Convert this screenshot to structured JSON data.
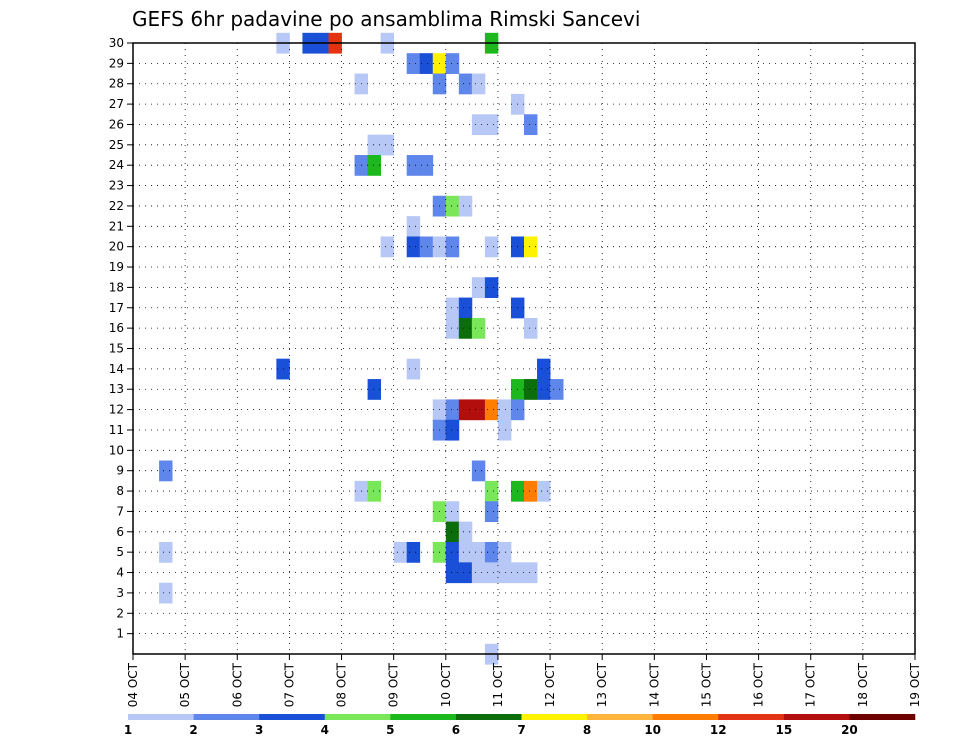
{
  "chart_data": {
    "type": "heatmap",
    "title": "GEFS 6hr padavine po ansamblima Rimski Sancevi",
    "x_tick_labels": [
      "04 OCT",
      "05 OCT",
      "06 OCT",
      "07 OCT",
      "08 OCT",
      "09 OCT",
      "10 OCT",
      "11 OCT",
      "12 OCT",
      "13 OCT",
      "14 OCT",
      "15 OCT",
      "16 OCT",
      "17 OCT",
      "18 OCT",
      "19 OCT"
    ],
    "y_tick_labels": [
      "1",
      "2",
      "3",
      "4",
      "5",
      "6",
      "7",
      "8",
      "9",
      "10",
      "11",
      "12",
      "13",
      "14",
      "15",
      "16",
      "17",
      "18",
      "19",
      "20",
      "21",
      "22",
      "23",
      "24",
      "25",
      "26",
      "27",
      "28",
      "29",
      "30"
    ],
    "x_range_days": [
      0,
      15
    ],
    "y_range": [
      0,
      30
    ],
    "step_hours": 6,
    "grid": "dotted",
    "colorbar": {
      "labels": [
        "1",
        "2",
        "3",
        "4",
        "5",
        "6",
        "7",
        "8",
        "10",
        "12",
        "15",
        "20"
      ],
      "colors": [
        "#b7c8f7",
        "#5f86ea",
        "#1a4fd8",
        "#7ae65a",
        "#1cb81e",
        "#0b6e0b",
        "#fff200",
        "#ffb43c",
        "#ff7d00",
        "#e23414",
        "#b30e0e",
        "#6e0000"
      ]
    },
    "cells": [
      [
        11,
        30,
        0
      ],
      [
        13,
        30,
        2
      ],
      [
        14,
        30,
        2
      ],
      [
        15,
        30,
        9
      ],
      [
        19,
        30,
        0
      ],
      [
        27,
        30,
        4
      ],
      [
        21,
        29,
        1
      ],
      [
        22,
        29,
        2
      ],
      [
        23,
        29,
        6
      ],
      [
        24,
        29,
        1
      ],
      [
        17,
        28,
        0
      ],
      [
        23,
        28,
        1
      ],
      [
        25,
        28,
        1
      ],
      [
        26,
        28,
        0
      ],
      [
        29,
        27,
        0
      ],
      [
        26,
        26,
        0
      ],
      [
        27,
        26,
        0
      ],
      [
        30,
        26,
        1
      ],
      [
        18,
        25,
        0
      ],
      [
        19,
        25,
        0
      ],
      [
        17,
        24,
        1
      ],
      [
        18,
        24,
        4
      ],
      [
        21,
        24,
        1
      ],
      [
        22,
        24,
        1
      ],
      [
        23,
        22,
        1
      ],
      [
        24,
        22,
        3
      ],
      [
        25,
        22,
        0
      ],
      [
        21,
        21,
        0
      ],
      [
        19,
        20,
        0
      ],
      [
        21,
        20,
        2
      ],
      [
        22,
        20,
        1
      ],
      [
        23,
        20,
        0
      ],
      [
        24,
        20,
        1
      ],
      [
        27,
        20,
        0
      ],
      [
        29,
        20,
        2
      ],
      [
        30,
        20,
        6
      ],
      [
        26,
        18,
        0
      ],
      [
        27,
        18,
        2
      ],
      [
        24,
        17,
        0
      ],
      [
        25,
        17,
        2
      ],
      [
        29,
        17,
        2
      ],
      [
        24,
        16,
        0
      ],
      [
        25,
        16,
        5
      ],
      [
        26,
        16,
        3
      ],
      [
        30,
        16,
        0
      ],
      [
        11,
        14,
        2
      ],
      [
        21,
        14,
        0
      ],
      [
        31,
        14,
        2
      ],
      [
        18,
        13,
        2
      ],
      [
        29,
        13,
        4
      ],
      [
        30,
        13,
        5
      ],
      [
        31,
        13,
        2
      ],
      [
        32,
        13,
        1
      ],
      [
        23,
        12,
        0
      ],
      [
        24,
        12,
        1
      ],
      [
        25,
        12,
        10
      ],
      [
        26,
        12,
        10
      ],
      [
        27,
        12,
        8
      ],
      [
        28,
        12,
        0
      ],
      [
        29,
        12,
        1
      ],
      [
        23,
        11,
        1
      ],
      [
        24,
        11,
        2
      ],
      [
        28,
        11,
        0
      ],
      [
        2,
        9,
        1
      ],
      [
        26,
        9,
        1
      ],
      [
        17,
        8,
        0
      ],
      [
        18,
        8,
        3
      ],
      [
        27,
        8,
        3
      ],
      [
        29,
        8,
        4
      ],
      [
        30,
        8,
        8
      ],
      [
        31,
        8,
        0
      ],
      [
        23,
        7,
        3
      ],
      [
        24,
        7,
        0
      ],
      [
        27,
        7,
        1
      ],
      [
        24,
        6,
        5
      ],
      [
        25,
        6,
        0
      ],
      [
        2,
        5,
        0
      ],
      [
        20,
        5,
        0
      ],
      [
        21,
        5,
        2
      ],
      [
        23,
        5,
        3
      ],
      [
        24,
        5,
        2
      ],
      [
        25,
        5,
        0
      ],
      [
        26,
        5,
        0
      ],
      [
        27,
        5,
        1
      ],
      [
        28,
        5,
        0
      ],
      [
        24,
        4,
        2
      ],
      [
        25,
        4,
        2
      ],
      [
        26,
        4,
        0
      ],
      [
        27,
        4,
        0
      ],
      [
        28,
        4,
        0
      ],
      [
        29,
        4,
        0
      ],
      [
        30,
        4,
        0
      ],
      [
        2,
        3,
        0
      ],
      [
        27,
        0,
        0
      ]
    ]
  }
}
